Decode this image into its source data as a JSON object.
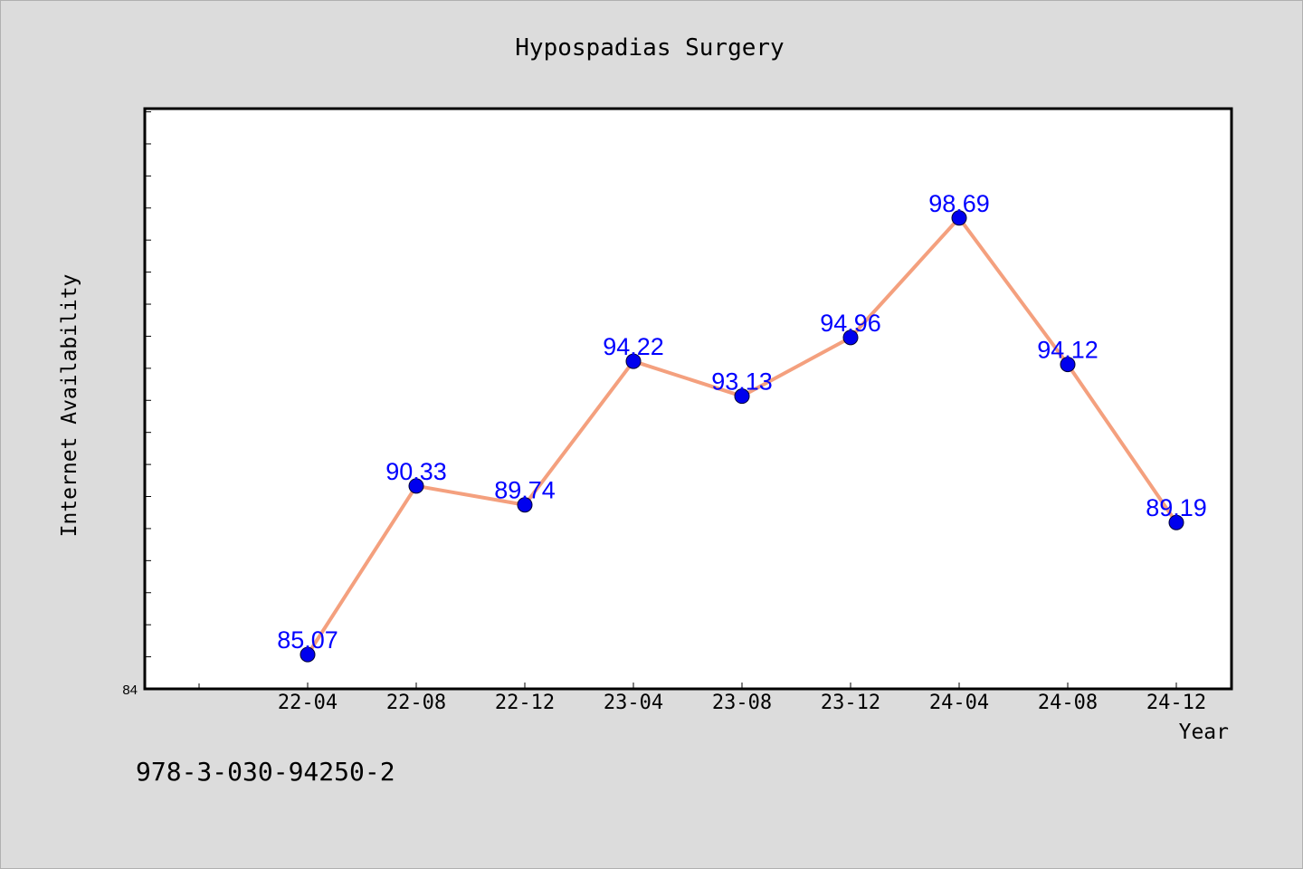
{
  "chart_data": {
    "type": "line",
    "title": "Hypospadias Surgery",
    "xlabel": "Year",
    "ylabel": "Internet Availability",
    "categories": [
      "22-04",
      "22-08",
      "22-12",
      "23-04",
      "23-08",
      "23-12",
      "24-04",
      "24-08",
      "24-12"
    ],
    "series": [
      {
        "values": [
          85.07,
          90.33,
          89.74,
          94.22,
          93.13,
          94.96,
          98.69,
          94.12,
          89.19
        ]
      }
    ],
    "ylim": [
      84,
      102.1
    ],
    "y_tick_labels": [
      "84"
    ],
    "grid": false,
    "line_color": "#f4a07e",
    "marker_color": "#0000ee",
    "label_color": "#0000ff"
  },
  "footer": {
    "isbn": "978-3-030-94250-2"
  }
}
